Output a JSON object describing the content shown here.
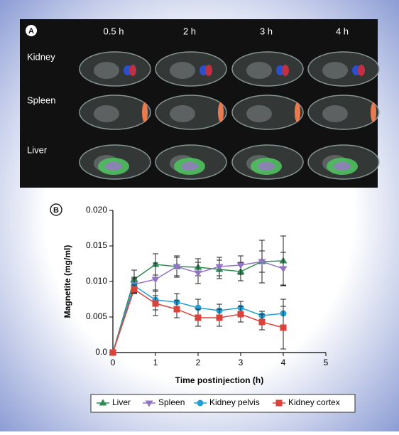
{
  "panel_a": {
    "label": "A",
    "columns": [
      "0.5 h",
      "2 h",
      "3 h",
      "4 h"
    ],
    "rows": [
      "Kidney",
      "Spleen",
      "Liver"
    ]
  },
  "chart_data": {
    "type": "line",
    "panel_label": "B",
    "y_label": "Magnetite (mg/ml)",
    "x_label": "Time postinjection (h)",
    "x": [
      0,
      0.5,
      1,
      1.5,
      2,
      2.5,
      3,
      3.5,
      4
    ],
    "xlim": [
      0,
      5
    ],
    "xticks": [
      0,
      1,
      2,
      3,
      4,
      5
    ],
    "ylim": [
      0,
      0.02
    ],
    "yticks": [
      {
        "value": 0,
        "label": "0.0"
      },
      {
        "value": 0.005,
        "label": "0.005"
      },
      {
        "value": 0.01,
        "label": "0.010"
      },
      {
        "value": 0.015,
        "label": "0.015"
      },
      {
        "value": 0.02,
        "label": "0.020"
      }
    ],
    "legend": "bottom",
    "series": [
      {
        "name": "Liver",
        "color": "#2e8b57",
        "marker": "triangle-up",
        "values": [
          0,
          0.0103,
          0.0124,
          0.0121,
          0.012,
          0.0117,
          0.0114,
          0.0128,
          0.0129
        ],
        "errors": [
          0,
          0.0013,
          0.0015,
          0.0015,
          0.0012,
          0.0013,
          0.0013,
          0.003,
          0.0035
        ]
      },
      {
        "name": "Spleen",
        "color": "#9474c4",
        "marker": "triangle-down",
        "values": [
          0,
          0.0096,
          0.0103,
          0.0121,
          0.0112,
          0.0121,
          0.0123,
          0.0128,
          0.0118
        ],
        "errors": [
          0,
          0.001,
          0.0023,
          0.0013,
          0.0015,
          0.0013,
          0.0013,
          0.0015,
          0.0023
        ]
      },
      {
        "name": "Kidney pelvis",
        "color": "#1ea0d8",
        "marker": "circle",
        "values": [
          0,
          0.0094,
          0.0074,
          0.0071,
          0.0063,
          0.0059,
          0.0063,
          0.0052,
          0.0055
        ],
        "errors": [
          0,
          0.001,
          0.0014,
          0.0012,
          0.0012,
          0.0009,
          0.0009,
          0.0006,
          0.002
        ]
      },
      {
        "name": "Kidney cortex",
        "color": "#d9433a",
        "marker": "square",
        "values": [
          0,
          0.0089,
          0.0069,
          0.0061,
          0.0049,
          0.0049,
          0.0054,
          0.0043,
          0.0035
        ],
        "errors": [
          0,
          0.0006,
          0.0017,
          0.0012,
          0.0012,
          0.0012,
          0.0011,
          0.0011,
          0.003
        ]
      }
    ]
  }
}
